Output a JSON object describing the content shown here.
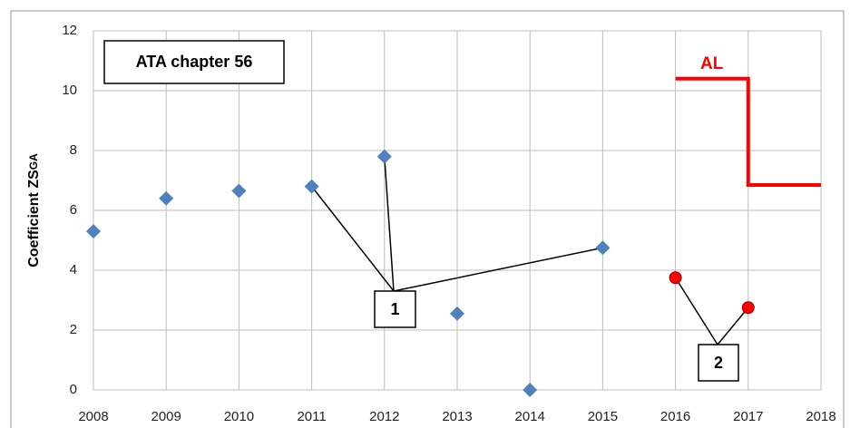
{
  "chart_data": {
    "type": "scatter",
    "title": "ATA chapter 56",
    "ylabel": "Coefficient ZS",
    "ylabel_sub": "GA",
    "xlim": [
      2008,
      2018
    ],
    "xticks": [
      2008,
      2009,
      2010,
      2011,
      2012,
      2013,
      2014,
      2015,
      2016,
      2017,
      2018
    ],
    "ylim": [
      0,
      12
    ],
    "yticks": [
      0,
      2,
      4,
      6,
      8,
      10,
      12
    ],
    "grid": true,
    "series": [
      {
        "marker": "diamond",
        "color": "#4f81bd",
        "x": [
          2008,
          2009,
          2010,
          2011,
          2012,
          2013,
          2014,
          2015
        ],
        "values": [
          5.3,
          6.4,
          6.65,
          6.8,
          7.8,
          2.55,
          0,
          4.75
        ]
      },
      {
        "marker": "circle",
        "color": "#ff0000",
        "x": [
          2016,
          2017
        ],
        "values": [
          3.75,
          2.75
        ]
      },
      {
        "name": "AL",
        "marker": "line",
        "color": "#ff0000",
        "x": [
          2016,
          2017,
          2017,
          2018
        ],
        "values": [
          10.4,
          10.4,
          6.85,
          6.85
        ]
      }
    ],
    "annotations": [
      "1",
      "2"
    ]
  }
}
